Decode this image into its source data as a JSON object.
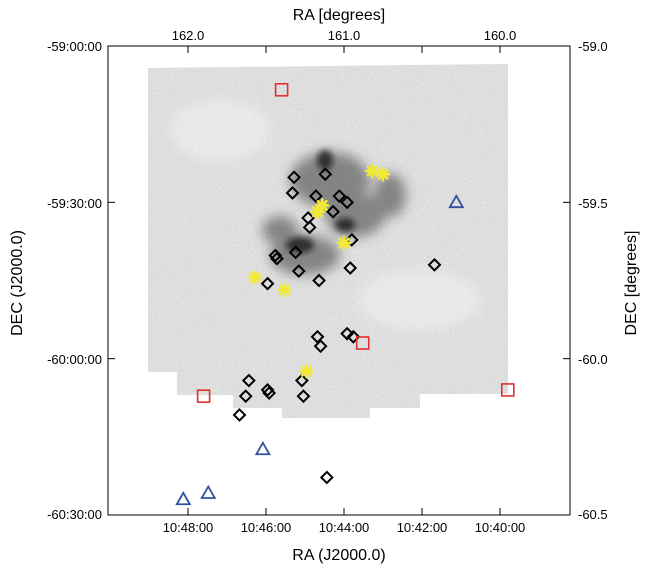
{
  "chart_data": {
    "type": "scatter",
    "title": "",
    "axes": {
      "bottom": {
        "label": "RA (J2000.0)",
        "ticks": [
          "10:48:00",
          "10:46:00",
          "10:44:00",
          "10:42:00",
          "10:40:00"
        ]
      },
      "top": {
        "label": "RA [degrees]",
        "ticks": [
          "162.0",
          "161.0",
          "160.0"
        ]
      },
      "left": {
        "label": "DEC (J2000.0)",
        "ticks": [
          "-59:00:00",
          "-59:30:00",
          "-60:00:00",
          "-60:30:00"
        ]
      },
      "right": {
        "label": "DEC [degrees]",
        "ticks": [
          "-59.0",
          "-59.5",
          "-60.0",
          "-60.5"
        ]
      }
    },
    "xlim_deg": [
      162.5,
      159.6
    ],
    "ylim_deg": [
      -60.5,
      -59.0
    ],
    "x_reversed": true,
    "grid": false,
    "legend": "none",
    "background": "grayscale sky image (Carina region)",
    "series": [
      {
        "marker": "open-diamond",
        "color": "#000000",
        "points": [
          [
            161.32,
            -59.42
          ],
          [
            161.12,
            -59.41
          ],
          [
            161.33,
            -59.47
          ],
          [
            161.18,
            -59.48
          ],
          [
            161.03,
            -59.48
          ],
          [
            160.98,
            -59.5
          ],
          [
            161.07,
            -59.53
          ],
          [
            161.23,
            -59.55
          ],
          [
            161.43,
            -59.68
          ],
          [
            161.44,
            -59.67
          ],
          [
            161.29,
            -59.72
          ],
          [
            161.49,
            -59.76
          ],
          [
            161.16,
            -59.75
          ],
          [
            160.96,
            -59.71
          ],
          [
            160.95,
            -59.62
          ],
          [
            160.98,
            -59.92
          ],
          [
            160.94,
            -59.93
          ],
          [
            161.17,
            -59.93
          ],
          [
            161.15,
            -59.96
          ],
          [
            161.61,
            -60.07
          ],
          [
            161.63,
            -60.12
          ],
          [
            161.49,
            -60.1
          ],
          [
            161.48,
            -60.11
          ],
          [
            161.27,
            -60.07
          ],
          [
            161.26,
            -60.12
          ],
          [
            161.67,
            -60.18
          ],
          [
            161.11,
            -60.38
          ],
          [
            160.42,
            -59.7
          ],
          [
            161.31,
            -59.66
          ],
          [
            161.22,
            -59.58
          ]
        ]
      },
      {
        "marker": "asterisk",
        "color": "#f2ea32",
        "points": [
          [
            160.82,
            -59.4
          ],
          [
            160.75,
            -59.41
          ],
          [
            161.17,
            -59.53
          ],
          [
            161.14,
            -59.51
          ],
          [
            161.0,
            -59.63
          ],
          [
            161.57,
            -59.74
          ],
          [
            161.38,
            -59.78
          ],
          [
            161.24,
            -60.04
          ]
        ]
      },
      {
        "marker": "open-square",
        "color": "#e03030",
        "points": [
          [
            161.4,
            -59.14
          ],
          [
            160.88,
            -59.95
          ],
          [
            161.9,
            -60.12
          ],
          [
            159.95,
            -60.1
          ]
        ]
      },
      {
        "marker": "open-triangle",
        "color": "#3050a0",
        "points": [
          [
            160.28,
            -59.5
          ],
          [
            161.52,
            -60.29
          ],
          [
            161.87,
            -60.43
          ],
          [
            162.03,
            -60.45
          ]
        ]
      }
    ]
  }
}
